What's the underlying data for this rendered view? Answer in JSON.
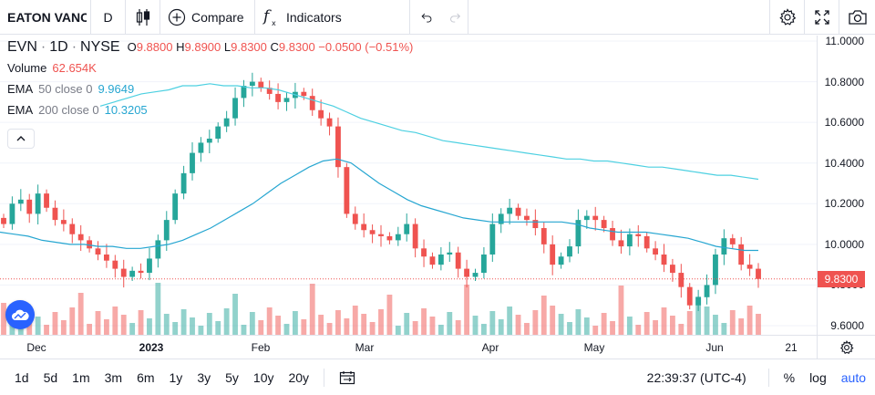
{
  "toolbar": {
    "symbol": "EATON VANCE",
    "interval": "D",
    "compare_label": "Compare",
    "indicators_label": "Indicators",
    "icons": [
      "candles-icon",
      "plus-circle-icon",
      "function-icon",
      "undo-icon",
      "redo-icon",
      "gear-icon",
      "fullscreen-icon",
      "camera-icon"
    ]
  },
  "legend": {
    "ticker": "EVN",
    "interval": "1D",
    "exchange": "NYSE",
    "o_label": "O",
    "o_value": "9.8800",
    "h_label": "H",
    "h_value": "9.8900",
    "l_label": "L",
    "l_value": "9.8300",
    "c_label": "C",
    "c_value": "9.8300",
    "change": "−0.0500 (−0.51%)",
    "volume_label": "Volume",
    "volume_value": "62.654K",
    "ema50_label": "EMA",
    "ema50_params": "50 close 0",
    "ema50_value": "9.9649",
    "ema200_label": "EMA",
    "ema200_params": "200 close 0",
    "ema200_value": "10.3205"
  },
  "price_axis": {
    "labels": [
      "11.0000",
      "10.8000",
      "10.6000",
      "10.4000",
      "10.2000",
      "10.0000",
      "9.8000",
      "9.6000"
    ],
    "last_price": "9.8300"
  },
  "time_axis": {
    "labels": [
      "Dec",
      "2023",
      "Feb",
      "Mar",
      "Apr",
      "May",
      "Jun",
      "21"
    ]
  },
  "bottom_bar": {
    "ranges": [
      "1d",
      "5d",
      "1m",
      "3m",
      "6m",
      "1y",
      "3y",
      "5y",
      "10y",
      "20y"
    ],
    "clock": "22:39:37 (UTC-4)",
    "percent_label": "%",
    "log_label": "log",
    "auto_label": "auto"
  },
  "colors": {
    "up": "#26a69a",
    "down": "#ef5350",
    "ema50": "#26a6d1",
    "ema200": "#4dd0e1",
    "accent": "#2962ff"
  },
  "chart_data": {
    "type": "candlestick",
    "ylim": [
      9.6,
      11.0
    ],
    "ema50": [
      10.06,
      10.05,
      10.04,
      10.02,
      10.01,
      10.0,
      10.0,
      9.99,
      9.99,
      9.98,
      9.98,
      9.99,
      10.0,
      10.02,
      10.05,
      10.08,
      10.12,
      10.16,
      10.2,
      10.25,
      10.3,
      10.34,
      10.38,
      10.41,
      10.42,
      10.4,
      10.35,
      10.3,
      10.26,
      10.22,
      10.19,
      10.17,
      10.15,
      10.13,
      10.12,
      10.11,
      10.11,
      10.11,
      10.11,
      10.11,
      10.11,
      10.1,
      10.08,
      10.07,
      10.06,
      10.06,
      10.06,
      10.05,
      10.04,
      10.03,
      10.01,
      9.99,
      9.98,
      9.97,
      9.97
    ],
    "ema200": [
      10.68,
      10.7,
      10.72,
      10.74,
      10.75,
      10.76,
      10.78,
      10.78,
      10.79,
      10.78,
      10.78,
      10.77,
      10.77,
      10.76,
      10.74,
      10.72,
      10.7,
      10.68,
      10.65,
      10.62,
      10.6,
      10.58,
      10.56,
      10.55,
      10.53,
      10.51,
      10.5,
      10.49,
      10.48,
      10.47,
      10.46,
      10.45,
      10.44,
      10.43,
      10.42,
      10.42,
      10.41,
      10.41,
      10.4,
      10.39,
      10.38,
      10.38,
      10.37,
      10.36,
      10.35,
      10.34,
      10.34,
      10.33,
      10.32
    ],
    "closes": [
      10.1,
      10.2,
      10.22,
      10.15,
      10.25,
      10.18,
      10.12,
      10.1,
      10.05,
      10.02,
      9.98,
      9.95,
      9.92,
      9.88,
      9.84,
      9.87,
      9.86,
      9.93,
      10.02,
      10.12,
      10.25,
      10.35,
      10.45,
      10.5,
      10.52,
      10.58,
      10.62,
      10.72,
      10.78,
      10.8,
      10.77,
      10.74,
      10.7,
      10.72,
      10.75,
      10.73,
      10.66,
      10.62,
      10.58,
      10.38,
      10.15,
      10.1,
      10.07,
      10.05,
      10.04,
      10.02,
      10.05,
      10.1,
      9.98,
      9.94,
      9.9,
      9.95,
      9.96,
      9.88,
      9.84,
      9.86,
      9.95,
      10.1,
      10.15,
      10.18,
      10.14,
      10.12,
      10.08,
      10.0,
      9.9,
      9.94,
      9.99,
      10.12,
      10.14,
      10.12,
      10.08,
      10.02,
      9.99,
      10.05,
      10.04,
      9.98,
      9.95,
      9.9,
      9.86,
      9.79,
      9.7,
      9.74,
      9.8,
      9.95,
      10.03,
      10.0,
      9.9,
      9.88,
      9.83
    ]
  }
}
